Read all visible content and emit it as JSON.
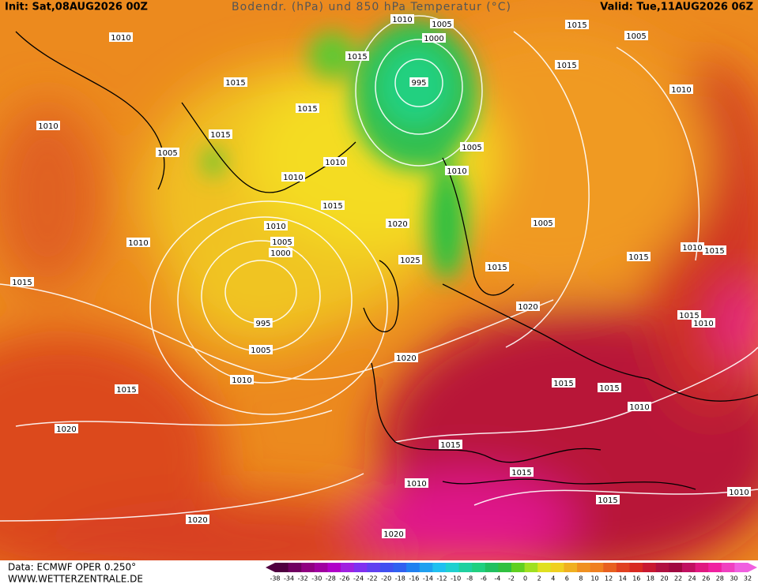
{
  "header": {
    "init": "Init: Sat,08AUG2026 00Z",
    "title": "Bodendr. (hPa) und 850 hPa Temperatur (°C)",
    "valid": "Valid: Tue,11AUG2026 06Z"
  },
  "footer": {
    "data_source": "Data: ECMWF OPER 0.250°",
    "website": "WWW.WETTERZENTRALE.DE"
  },
  "isobar_labels": [
    "1010",
    "1015",
    "1010",
    "1005",
    "1015",
    "1015",
    "1010",
    "1010",
    "1015",
    "1010",
    "1005",
    "1000",
    "995",
    "1005",
    "1010",
    "1010",
    "1015",
    "1015",
    "1020",
    "1020",
    "1020",
    "1010",
    "1015",
    "1015",
    "1015",
    "1010",
    "1010",
    "1015",
    "1015",
    "1015",
    "1010",
    "1015",
    "1015",
    "1010",
    "1020",
    "1020",
    "1025",
    "1015",
    "1005",
    "1010",
    "1005",
    "995",
    "1000",
    "1005",
    "1010",
    "1015",
    "1015",
    "1005",
    "1015",
    "1010",
    "1020"
  ],
  "colorbar": {
    "labels": [
      -38,
      -34,
      -32,
      -30,
      -28,
      -26,
      -24,
      -22,
      -20,
      -18,
      -16,
      -14,
      -12,
      -10,
      -8,
      -6,
      -4,
      -2,
      0,
      2,
      4,
      6,
      8,
      10,
      12,
      14,
      16,
      18,
      20,
      22,
      24,
      26,
      28,
      30,
      32
    ],
    "colors": [
      "#500040",
      "#700060",
      "#900080",
      "#a000a0",
      "#b000c8",
      "#a020e0",
      "#8030f0",
      "#6040f0",
      "#4050f0",
      "#3060f0",
      "#2080f0",
      "#20a0f0",
      "#20c0f0",
      "#20d0d0",
      "#20d0a0",
      "#20d080",
      "#20c060",
      "#30c040",
      "#60d020",
      "#a0e020",
      "#e0e020",
      "#f0d020",
      "#f0b020",
      "#f09020",
      "#f08020",
      "#e86020",
      "#e04020",
      "#d82820",
      "#c81830",
      "#b01040",
      "#a00840",
      "#c01060",
      "#e01880",
      "#f020a0",
      "#f040c0",
      "#f060e0"
    ]
  }
}
